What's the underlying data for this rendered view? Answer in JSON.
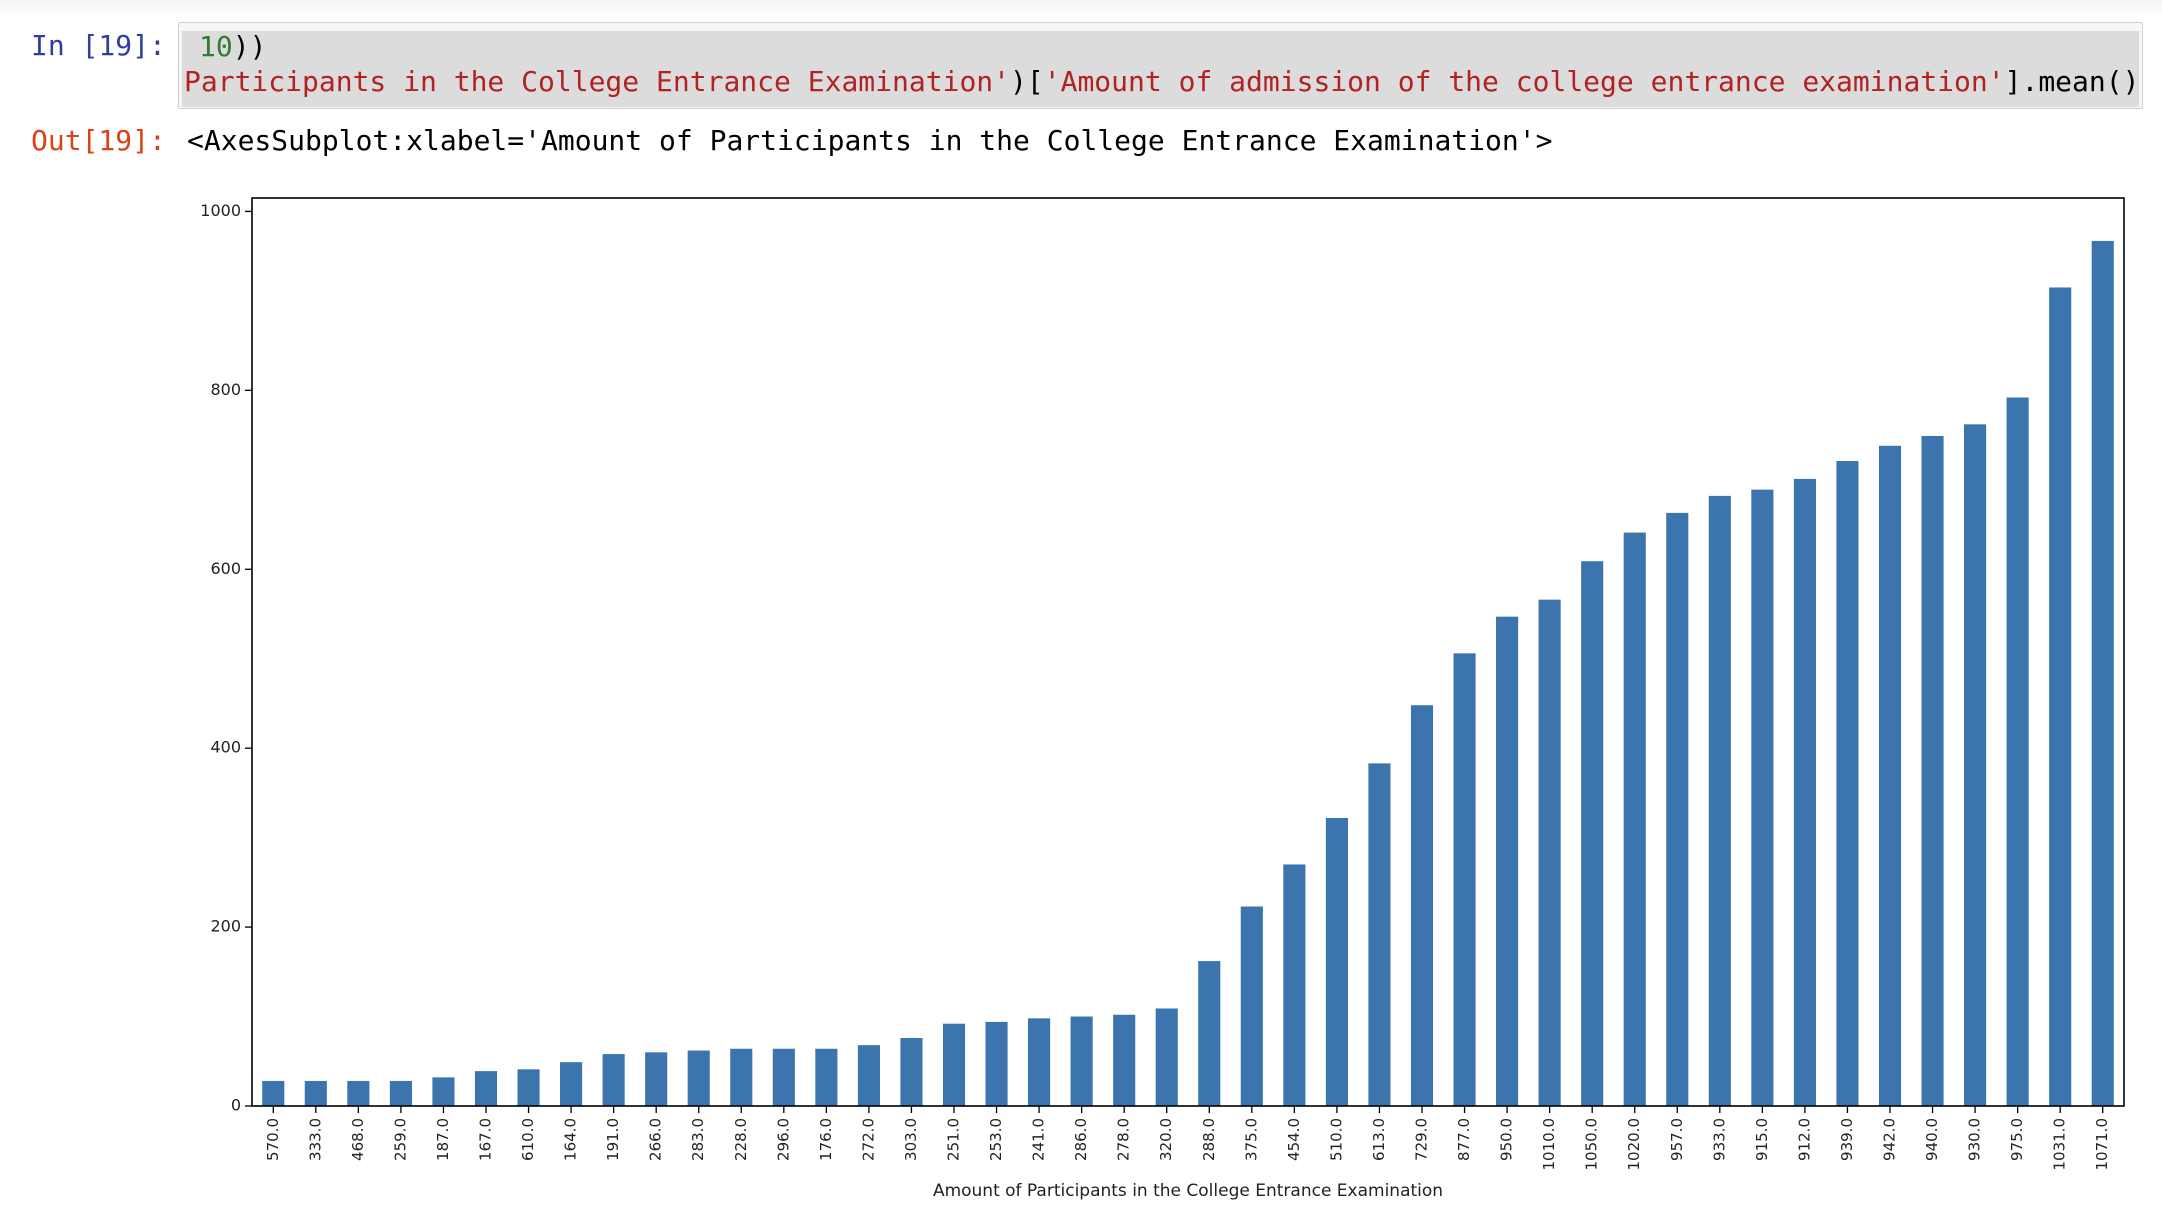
{
  "cell": {
    "in_prompt": "In [19]:",
    "out_prompt": "Out[19]:",
    "code_line1_number": "10",
    "code_line1_rest": "))",
    "code_line2_str1": "Participants in the College Entrance Examination'",
    "code_line2_mid": ")[",
    "code_line2_str2": "'Amount of admission of the college entrance examination'",
    "code_line2_end": "].mean()",
    "output_repr": "<AxesSubplot:xlabel='Amount of Participants in the College Entrance Examination'>"
  },
  "colors": {
    "bar": "#3c74ad",
    "axis": "#000000"
  },
  "chart_data": {
    "type": "bar",
    "title": "",
    "xlabel": "Amount of Participants in the College Entrance Examination",
    "ylabel": "",
    "ylim": [
      0,
      1015
    ],
    "yticks": [
      0,
      200,
      400,
      600,
      800,
      1000
    ],
    "grid": false,
    "categories": [
      "570.0",
      "333.0",
      "468.0",
      "259.0",
      "187.0",
      "167.0",
      "610.0",
      "164.0",
      "191.0",
      "266.0",
      "283.0",
      "228.0",
      "296.0",
      "176.0",
      "272.0",
      "303.0",
      "251.0",
      "253.0",
      "241.0",
      "286.0",
      "278.0",
      "320.0",
      "288.0",
      "375.0",
      "454.0",
      "510.0",
      "613.0",
      "729.0",
      "877.0",
      "950.0",
      "1010.0",
      "1050.0",
      "1020.0",
      "957.0",
      "933.0",
      "915.0",
      "912.0",
      "939.0",
      "942.0",
      "940.0",
      "930.0",
      "975.0",
      "1031.0",
      "1071.0"
    ],
    "values": [
      28,
      28,
      28,
      28,
      32,
      39,
      41,
      49,
      58,
      60,
      62,
      64,
      64,
      64,
      68,
      76,
      92,
      94,
      98,
      100,
      102,
      109,
      162,
      223,
      270,
      322,
      383,
      448,
      506,
      547,
      566,
      609,
      641,
      663,
      682,
      689,
      701,
      721,
      738,
      749,
      762,
      792,
      915,
      967
    ]
  }
}
